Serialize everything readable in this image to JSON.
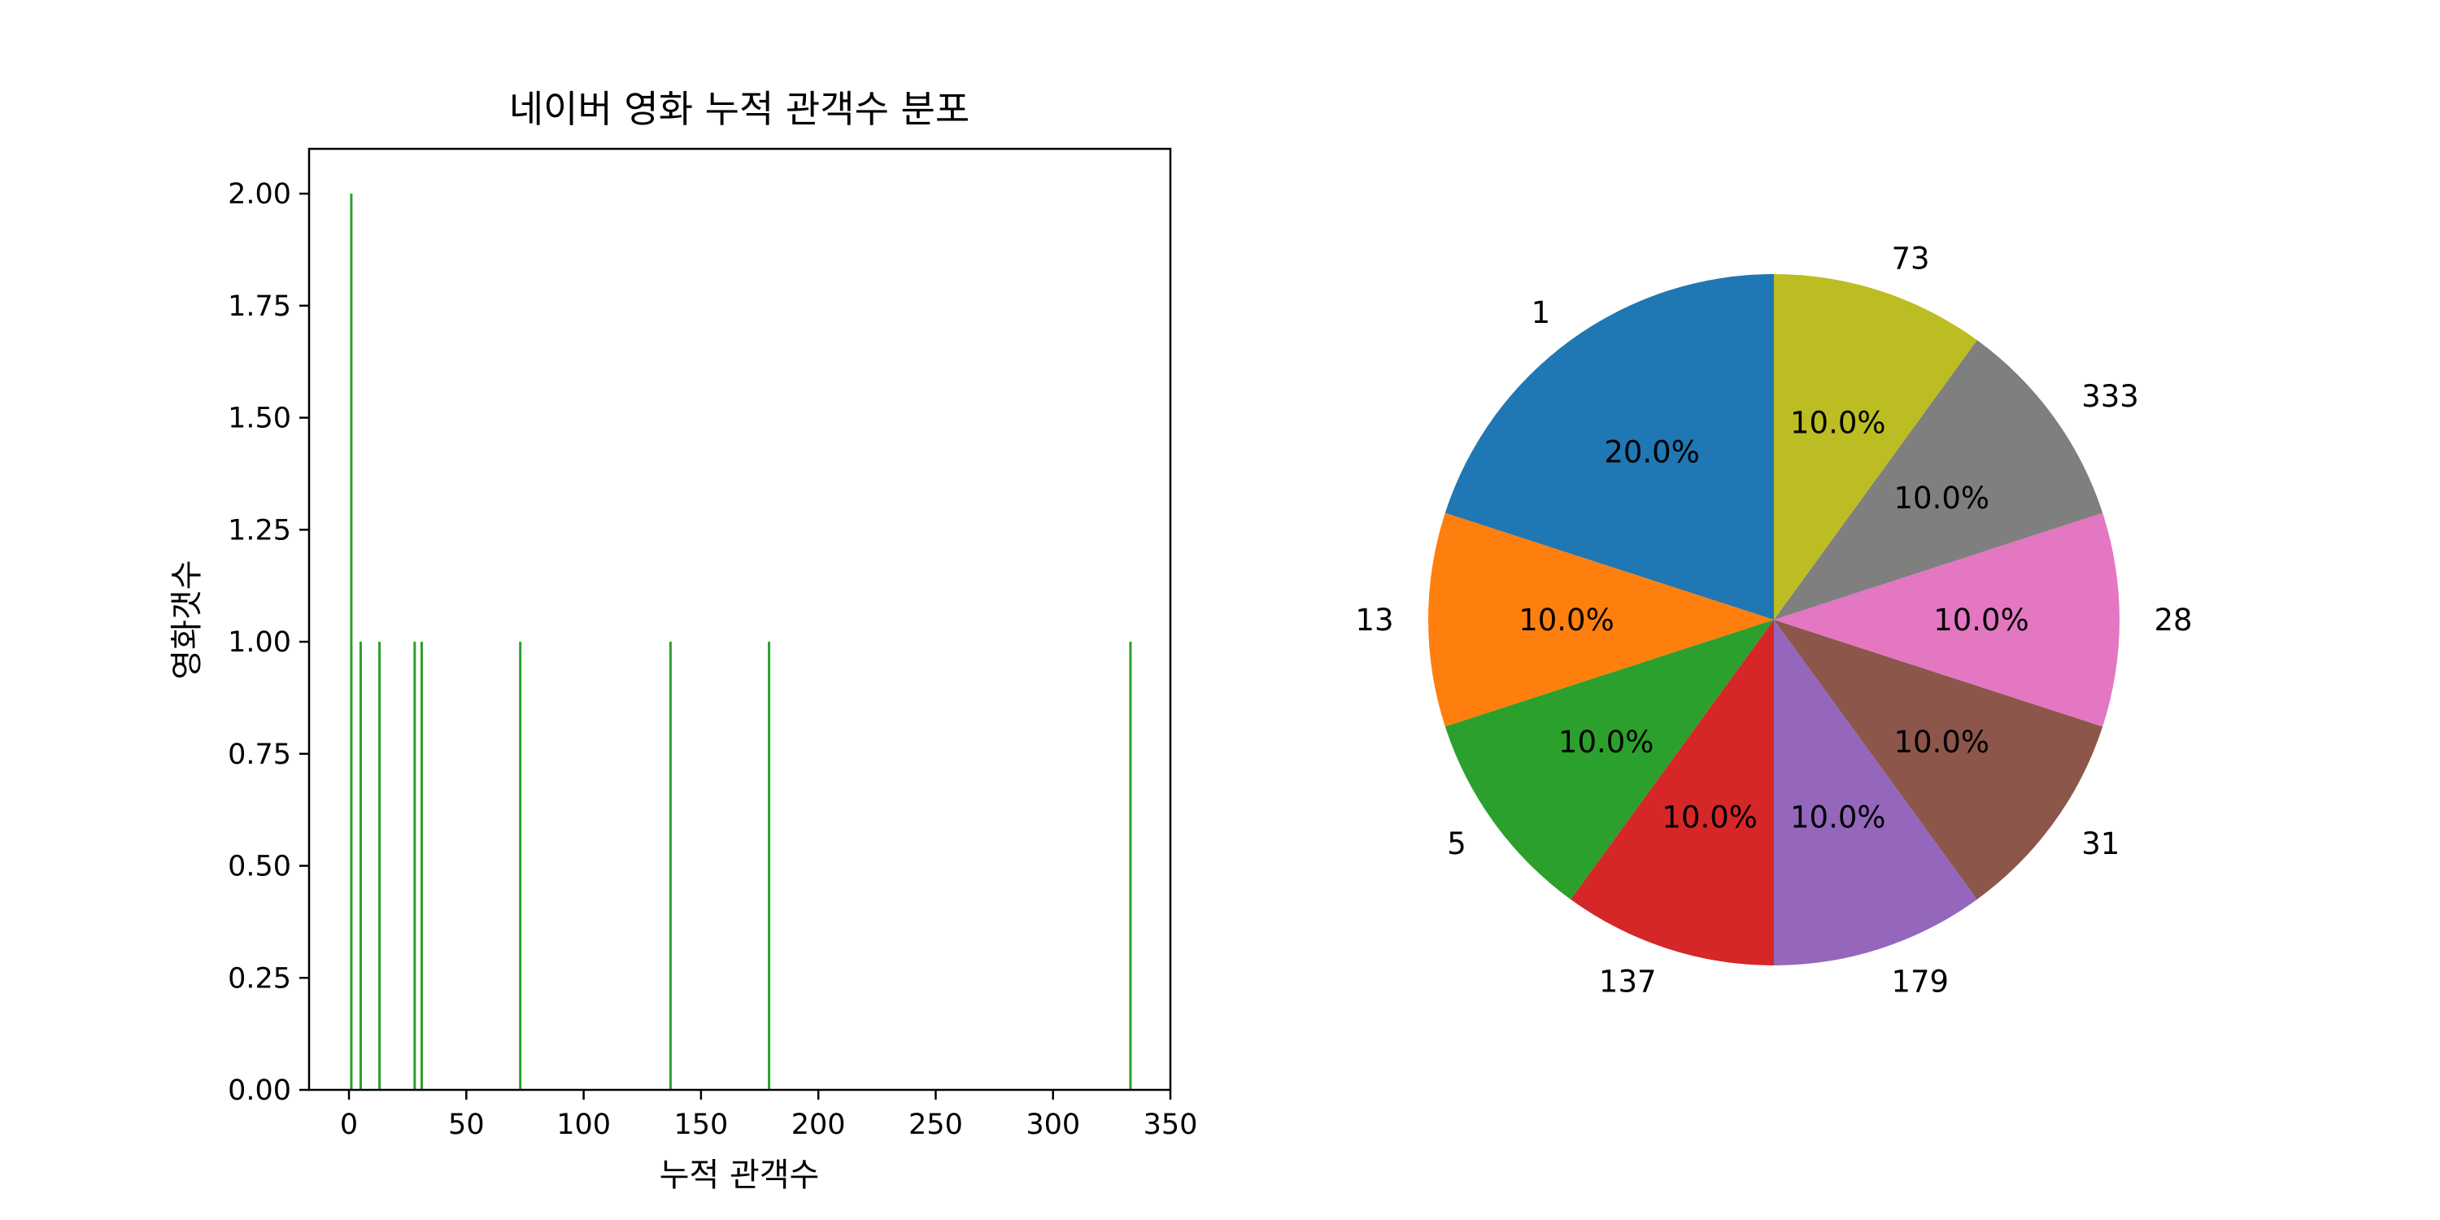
{
  "chart_data": [
    {
      "type": "bar",
      "title": "네이버 영화 누적 관객수 분포",
      "xlabel": "누적 관객수",
      "ylabel": "영화갯수",
      "xlim": [
        -17,
        350
      ],
      "ylim": [
        0,
        2.1
      ],
      "xticks": [
        "0",
        "50",
        "100",
        "150",
        "200",
        "250",
        "300",
        "350"
      ],
      "yticks": [
        "0.00",
        "0.25",
        "0.50",
        "0.75",
        "1.00",
        "1.25",
        "1.50",
        "1.75",
        "2.00"
      ],
      "bar_color": "#2ca02c",
      "x": [
        1,
        5,
        13,
        28,
        31,
        73,
        137,
        179,
        333
      ],
      "values": [
        2,
        1,
        1,
        1,
        1,
        1,
        1,
        1,
        1
      ],
      "grid": false
    },
    {
      "type": "pie",
      "labels": [
        "1",
        "13",
        "5",
        "137",
        "179",
        "31",
        "28",
        "333",
        "73"
      ],
      "values": [
        2,
        1,
        1,
        1,
        1,
        1,
        1,
        1,
        1
      ],
      "percent_labels": [
        "20.0%",
        "10.0%",
        "10.0%",
        "10.0%",
        "10.0%",
        "10.0%",
        "10.0%",
        "10.0%",
        "10.0%"
      ],
      "colors": [
        "#1f77b4",
        "#ff7f0e",
        "#2ca02c",
        "#d62728",
        "#9467bd",
        "#8c564b",
        "#e377c2",
        "#7f7f7f",
        "#bcbd22"
      ],
      "start_angle": 90,
      "direction": "counterclockwise"
    }
  ]
}
